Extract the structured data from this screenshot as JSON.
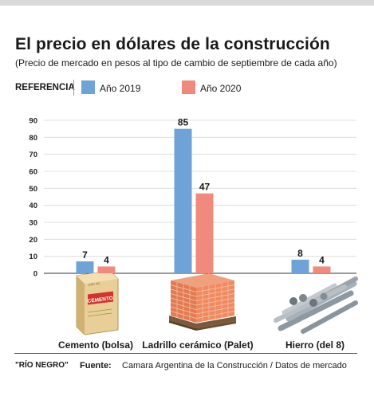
{
  "header": {
    "title": "El precio en dólares de la construcción",
    "subtitle": "(Precio de mercado en pesos al tipo de cambio de septiembre de cada año)"
  },
  "legend": {
    "reference_label": "REFERENCIA",
    "items": [
      {
        "label": "Año 2019",
        "color": "#6fa3d8"
      },
      {
        "label": "Año 2020",
        "color": "#ef8a7c"
      }
    ]
  },
  "chart_data": {
    "type": "bar",
    "categories": [
      "Cemento (bolsa)",
      "Ladrillo cerámico (Palet)",
      "Hierro (del 8)"
    ],
    "series": [
      {
        "name": "Año 2019",
        "values": [
          7,
          85,
          8
        ]
      },
      {
        "name": "Año 2020",
        "values": [
          4,
          47,
          4
        ]
      }
    ],
    "ylim": [
      0,
      90
    ],
    "yticks": [
      0,
      10,
      20,
      30,
      40,
      50,
      60,
      70,
      80,
      90
    ],
    "grid": true,
    "legend_position": "top-left",
    "colors": {
      "series_2019": "#6fa3d8",
      "series_2020": "#ef8a7c",
      "grid": "#d7d7d7",
      "axis": "#333333"
    },
    "icons": [
      "cement-bag-icon",
      "brick-pallet-icon",
      "rebar-bundle-icon"
    ],
    "icon_text": {
      "cement_bag": "CEMENTO",
      "cement_bag_top": "CPC 40"
    }
  },
  "footer": {
    "credit": "\"RÍO NEGRO\"",
    "source_label": "Fuente:",
    "source_text": "Camara Argentina de la Construcción / Datos de mercado"
  }
}
